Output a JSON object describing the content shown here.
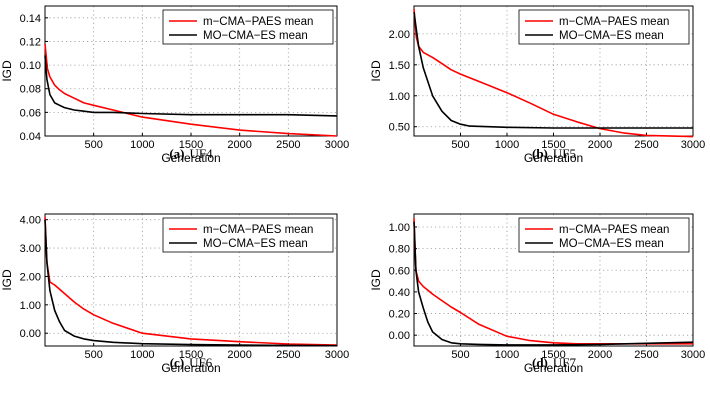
{
  "chart_data": [
    {
      "type": "line",
      "caption_label": "(a)",
      "caption_name": "UF4",
      "xlabel": "Generation",
      "ylabel": "IGD",
      "xlim": [
        0,
        3000
      ],
      "ylim": [
        0.04,
        0.15
      ],
      "xticks": [
        500,
        1000,
        1500,
        2000,
        2500,
        3000
      ],
      "xtick_labels": [
        "500",
        "1000",
        "1500",
        "2000",
        "2500",
        "3000"
      ],
      "yticks": [
        0.04,
        0.06,
        0.08,
        0.1,
        0.12,
        0.14
      ],
      "ytick_labels": [
        "0.04",
        "0.06",
        "0.08",
        "0.10",
        "0.12",
        "0.14"
      ],
      "grid": true,
      "legend_position": "top-right",
      "series": [
        {
          "name": "m−CMA−PAES mean",
          "color": "#ff0000",
          "x": [
            0,
            25,
            50,
            100,
            150,
            200,
            300,
            400,
            500,
            700,
            800,
            1000,
            1500,
            2000,
            2500,
            3000
          ],
          "y": [
            0.118,
            0.097,
            0.09,
            0.083,
            0.079,
            0.076,
            0.072,
            0.068,
            0.066,
            0.062,
            0.06,
            0.056,
            0.05,
            0.045,
            0.042,
            0.04
          ]
        },
        {
          "name": "MO−CMA−ES mean",
          "color": "#000000",
          "x": [
            0,
            20,
            50,
            100,
            150,
            200,
            300,
            400,
            500,
            700,
            1000,
            1500,
            2000,
            2500,
            3000
          ],
          "y": [
            0.108,
            0.088,
            0.075,
            0.068,
            0.066,
            0.064,
            0.062,
            0.061,
            0.06,
            0.06,
            0.059,
            0.058,
            0.058,
            0.058,
            0.057
          ]
        }
      ]
    },
    {
      "type": "line",
      "caption_label": "(b)",
      "caption_name": "UF5",
      "xlabel": "Generation",
      "ylabel": "IGD",
      "xlim": [
        0,
        3000
      ],
      "ylim": [
        0.35,
        2.45
      ],
      "xticks": [
        500,
        1000,
        1500,
        2000,
        2500,
        3000
      ],
      "xtick_labels": [
        "500",
        "1000",
        "1500",
        "2000",
        "2500",
        "3000"
      ],
      "yticks": [
        0.5,
        1.0,
        1.5,
        2.0
      ],
      "ytick_labels": [
        "0.50",
        "1.00",
        "1.50",
        "2.00"
      ],
      "grid": true,
      "legend_position": "top-right",
      "series": [
        {
          "name": "m−CMA−PAES mean",
          "color": "#ff0000",
          "x": [
            0,
            25,
            50,
            100,
            200,
            300,
            400,
            500,
            750,
            1000,
            1250,
            1500,
            1750,
            2000,
            2250,
            2500,
            3000
          ],
          "y": [
            2.4,
            1.95,
            1.8,
            1.7,
            1.62,
            1.52,
            1.42,
            1.35,
            1.2,
            1.05,
            0.88,
            0.7,
            0.58,
            0.47,
            0.4,
            0.36,
            0.34
          ]
        },
        {
          "name": "MO−CMA−ES mean",
          "color": "#000000",
          "x": [
            0,
            50,
            100,
            200,
            300,
            400,
            500,
            600,
            800,
            1000,
            1500,
            2000,
            3000
          ],
          "y": [
            2.35,
            1.8,
            1.45,
            1.0,
            0.75,
            0.6,
            0.54,
            0.51,
            0.5,
            0.49,
            0.48,
            0.48,
            0.48
          ]
        }
      ]
    },
    {
      "type": "line",
      "caption_label": "(c)",
      "caption_name": "UF6",
      "xlabel": "Generation",
      "ylabel": "IGD",
      "xlim": [
        0,
        3000
      ],
      "ylim": [
        -0.45,
        4.2
      ],
      "xticks": [
        500,
        1000,
        1500,
        2000,
        2500,
        3000
      ],
      "xtick_labels": [
        "500",
        "1000",
        "1500",
        "2000",
        "2500",
        "3000"
      ],
      "yticks": [
        0,
        1,
        2,
        3,
        4
      ],
      "ytick_labels": [
        "0.00",
        "1.00",
        "2.00",
        "3.00",
        "4.00"
      ],
      "grid": true,
      "legend_position": "top-right",
      "series": [
        {
          "name": "m−CMA−PAES mean",
          "color": "#ff0000",
          "x": [
            0,
            20,
            50,
            100,
            200,
            300,
            400,
            500,
            700,
            1000,
            1500,
            2000,
            2500,
            3000
          ],
          "y": [
            4.1,
            2.5,
            1.8,
            1.7,
            1.4,
            1.1,
            0.85,
            0.65,
            0.35,
            0.0,
            -0.2,
            -0.3,
            -0.38,
            -0.42
          ]
        },
        {
          "name": "MO−CMA−ES mean",
          "color": "#000000",
          "x": [
            0,
            20,
            50,
            100,
            150,
            200,
            300,
            400,
            500,
            700,
            1000,
            1500,
            2000,
            3000
          ],
          "y": [
            4.0,
            2.5,
            1.5,
            0.8,
            0.4,
            0.1,
            -0.1,
            -0.2,
            -0.26,
            -0.32,
            -0.37,
            -0.4,
            -0.42,
            -0.44
          ]
        }
      ]
    },
    {
      "type": "line",
      "caption_label": "(d)",
      "caption_name": "UF7",
      "xlabel": "Generation",
      "ylabel": "IGD",
      "xlim": [
        0,
        3000
      ],
      "ylim": [
        -0.1,
        1.12
      ],
      "xticks": [
        500,
        1000,
        1500,
        2000,
        2500,
        3000
      ],
      "xtick_labels": [
        "500",
        "1000",
        "1500",
        "2000",
        "2500",
        "3000"
      ],
      "yticks": [
        0,
        0.2,
        0.4,
        0.6,
        0.8,
        1.0
      ],
      "ytick_labels": [
        "0.00",
        "0.20",
        "0.40",
        "0.60",
        "0.80",
        "1.00"
      ],
      "grid": true,
      "legend_position": "top-right",
      "series": [
        {
          "name": "m−CMA−PAES mean",
          "color": "#ff0000",
          "x": [
            0,
            20,
            50,
            100,
            200,
            300,
            400,
            500,
            700,
            1000,
            1250,
            1500,
            1750,
            2000,
            2500,
            3000
          ],
          "y": [
            1.08,
            0.6,
            0.5,
            0.45,
            0.38,
            0.32,
            0.26,
            0.21,
            0.1,
            -0.01,
            -0.05,
            -0.07,
            -0.08,
            -0.08,
            -0.08,
            -0.08
          ]
        },
        {
          "name": "MO−CMA−ES mean",
          "color": "#000000",
          "x": [
            0,
            20,
            50,
            100,
            150,
            200,
            300,
            400,
            500,
            700,
            1000,
            1500,
            2000,
            2500,
            3000
          ],
          "y": [
            1.05,
            0.6,
            0.4,
            0.25,
            0.12,
            0.03,
            -0.04,
            -0.07,
            -0.08,
            -0.085,
            -0.09,
            -0.09,
            -0.085,
            -0.075,
            -0.065
          ]
        }
      ]
    }
  ]
}
